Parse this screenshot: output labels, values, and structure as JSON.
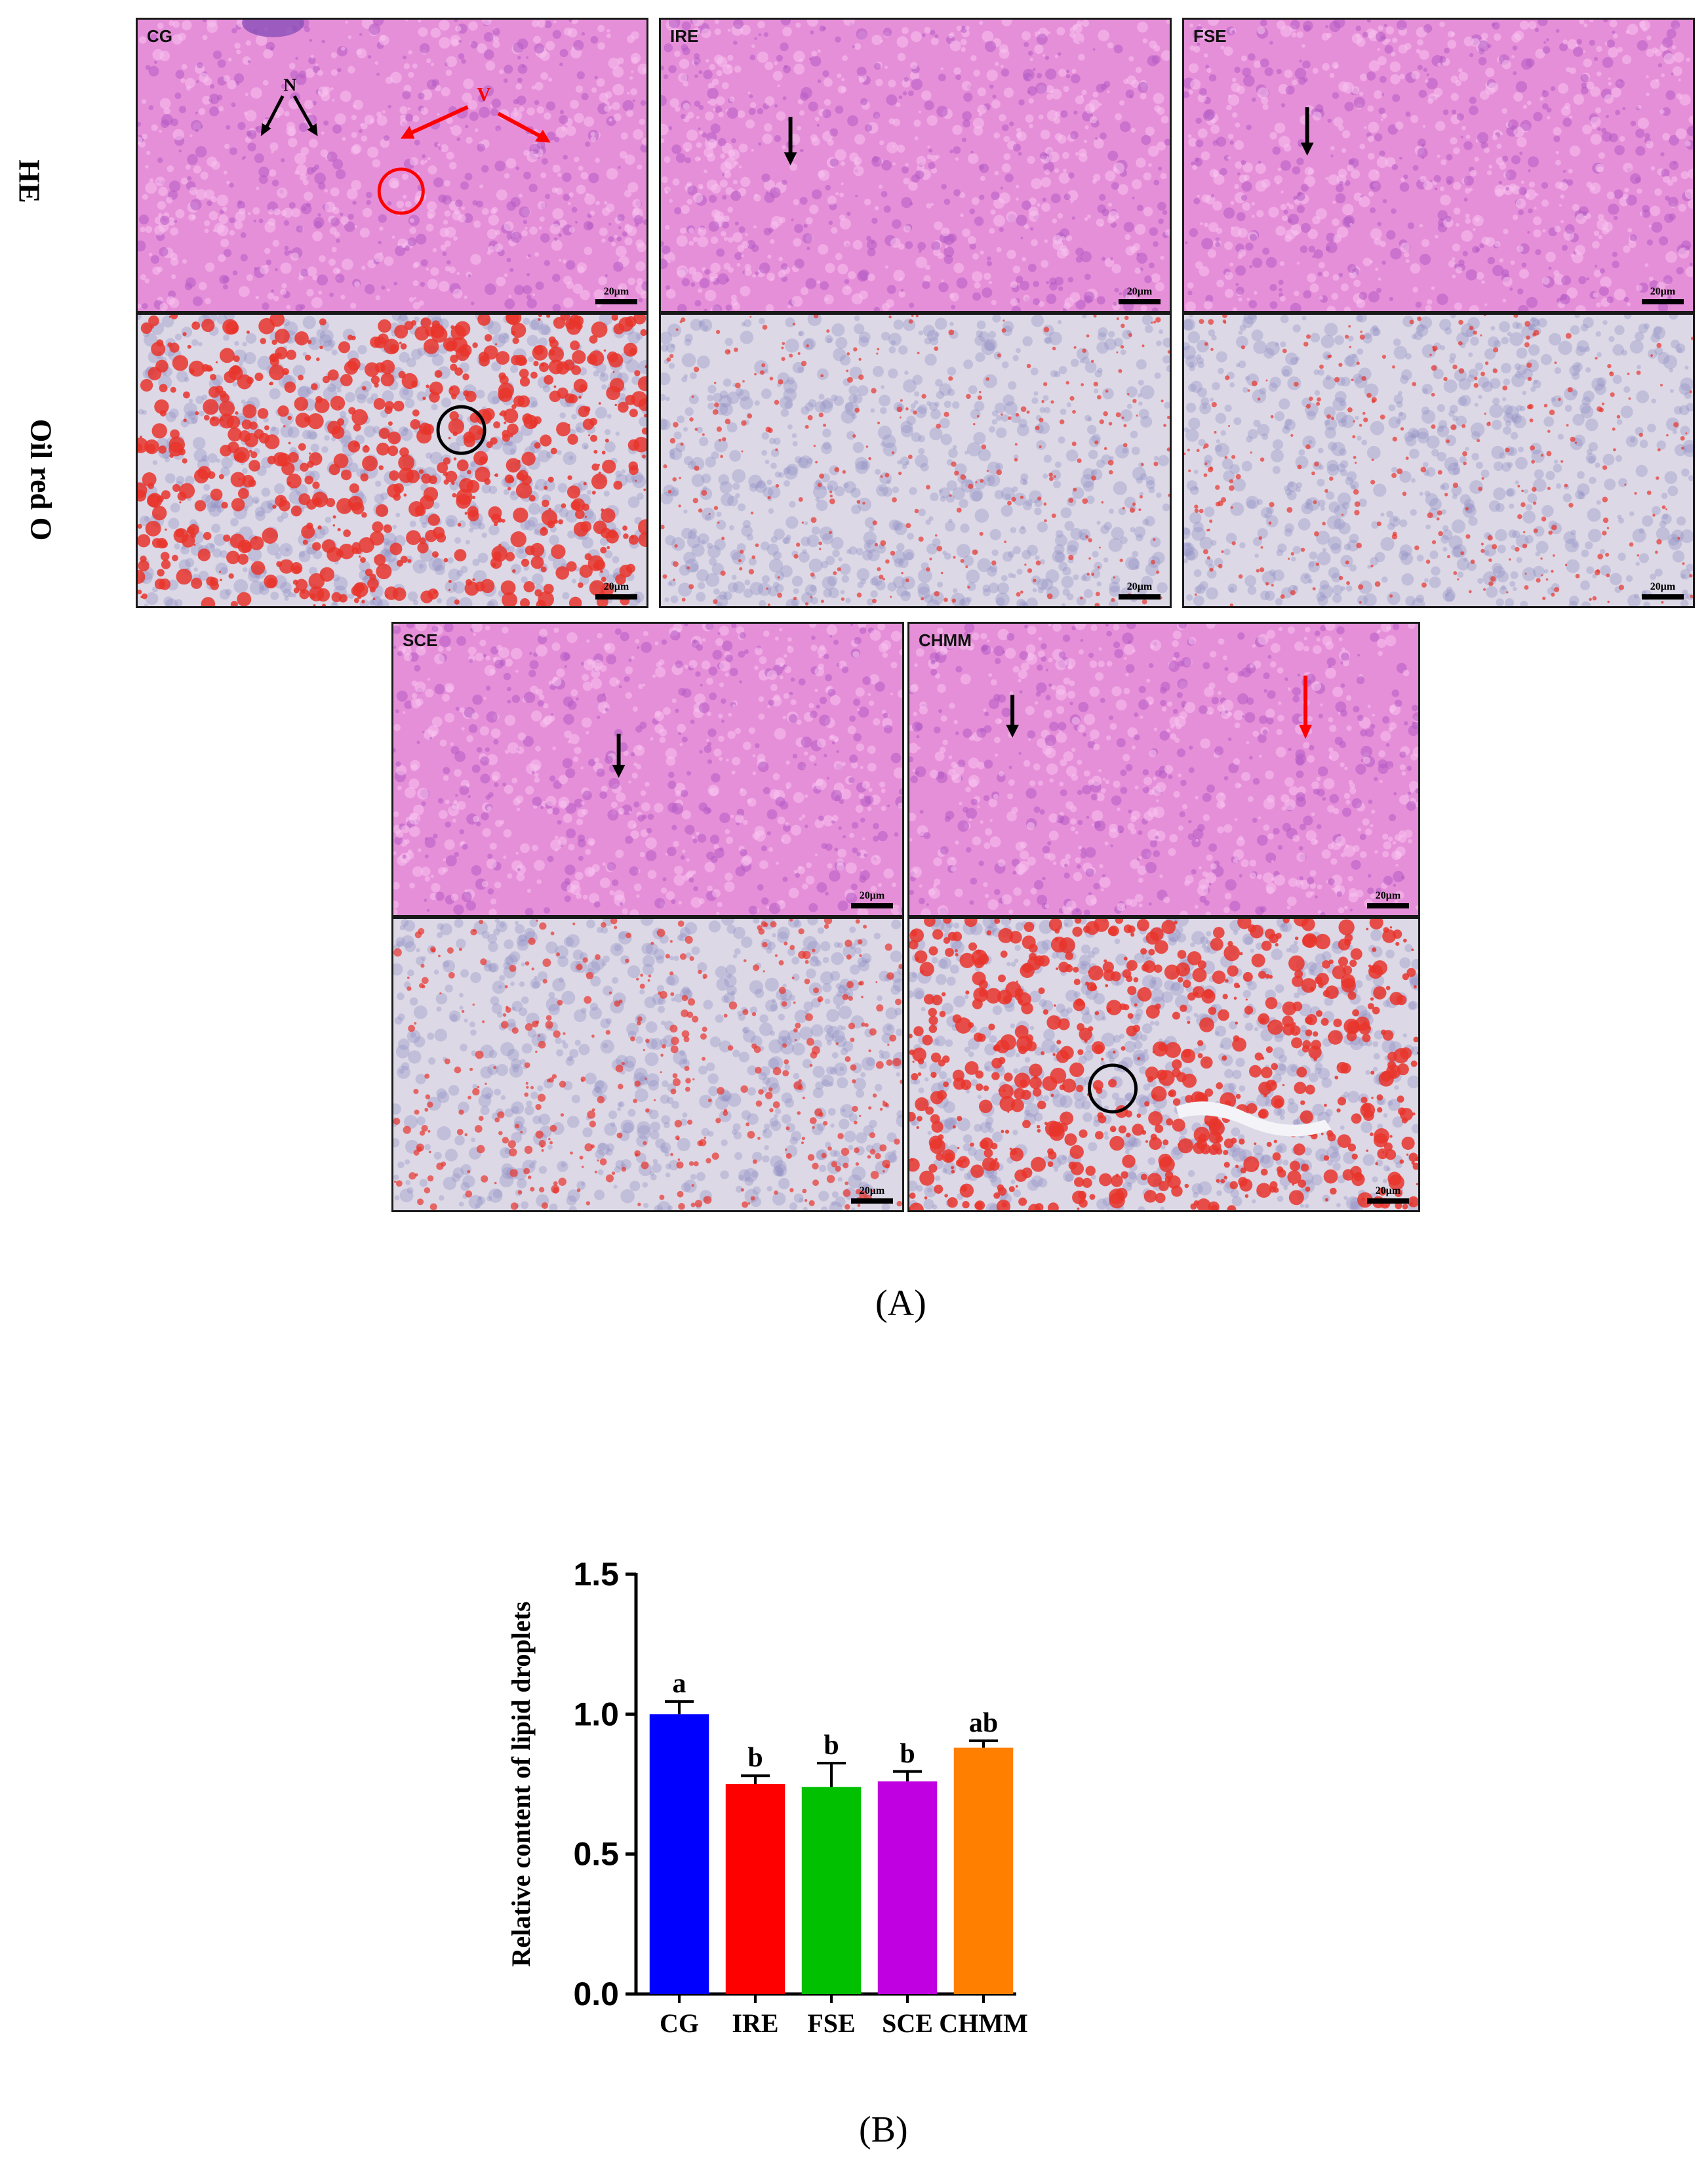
{
  "figure": {
    "rows": {
      "he": "HE",
      "oil": "Oil red O"
    },
    "groups": [
      "CG",
      "IRE",
      "FSE",
      "SCE",
      "CHMM"
    ],
    "scale_bar": "20μm",
    "annotations": {
      "nuclei": "N",
      "vacuoles": "V"
    },
    "caption_a": "(A)",
    "caption_b": "(B)"
  },
  "chart_data": {
    "type": "bar",
    "categories": [
      "CG",
      "IRE",
      "FSE",
      "SCE",
      "CHMM"
    ],
    "values": [
      1.0,
      0.75,
      0.74,
      0.76,
      0.88
    ],
    "errors": [
      0.045,
      0.03,
      0.085,
      0.035,
      0.025
    ],
    "significance": [
      "a",
      "b",
      "b",
      "b",
      "ab"
    ],
    "colors": [
      "#0000ff",
      "#ff0000",
      "#00c000",
      "#c000e0",
      "#ff8000"
    ],
    "title": "",
    "xlabel": "",
    "ylabel": "Relative content of lipid droplets",
    "ylim": [
      0.0,
      1.5
    ],
    "yticks": [
      "0.0",
      "0.5",
      "1.0",
      "1.5"
    ],
    "grid": false
  }
}
